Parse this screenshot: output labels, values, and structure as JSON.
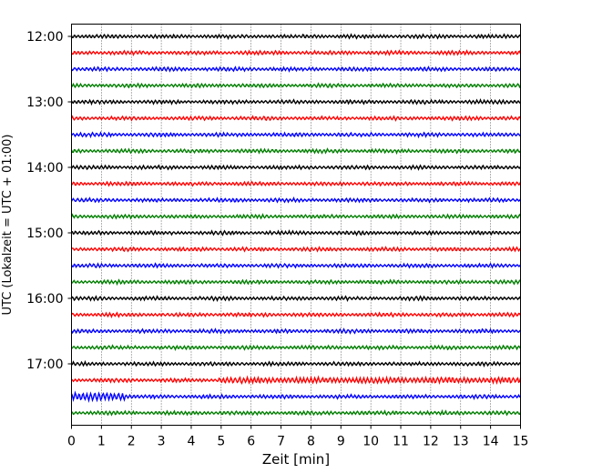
{
  "chart_data": {
    "type": "line",
    "title": "",
    "xlabel": "Zeit  [min]",
    "ylabel": "UTC (Lokalzeit = UTC + 01:00)",
    "xlim": [
      0,
      15
    ],
    "x_ticks": [
      "0",
      "1",
      "2",
      "3",
      "4",
      "5",
      "6",
      "7",
      "8",
      "9",
      "10",
      "11",
      "12",
      "13",
      "14",
      "15"
    ],
    "y_tick_labels": [
      "12:00",
      "13:00",
      "14:00",
      "15:00",
      "16:00",
      "17:00"
    ],
    "trace_minutes": 15,
    "trace_start": "12:00",
    "trace_count": 24,
    "trace_colors": [
      "#000000",
      "#ff0000",
      "#0000ff",
      "#007f00"
    ],
    "grid": "vertical dotted",
    "series": [
      {
        "color": "#000000"
      },
      {
        "color": "#ff0000"
      },
      {
        "color": "#0000ff"
      },
      {
        "color": "#007f00"
      }
    ]
  }
}
